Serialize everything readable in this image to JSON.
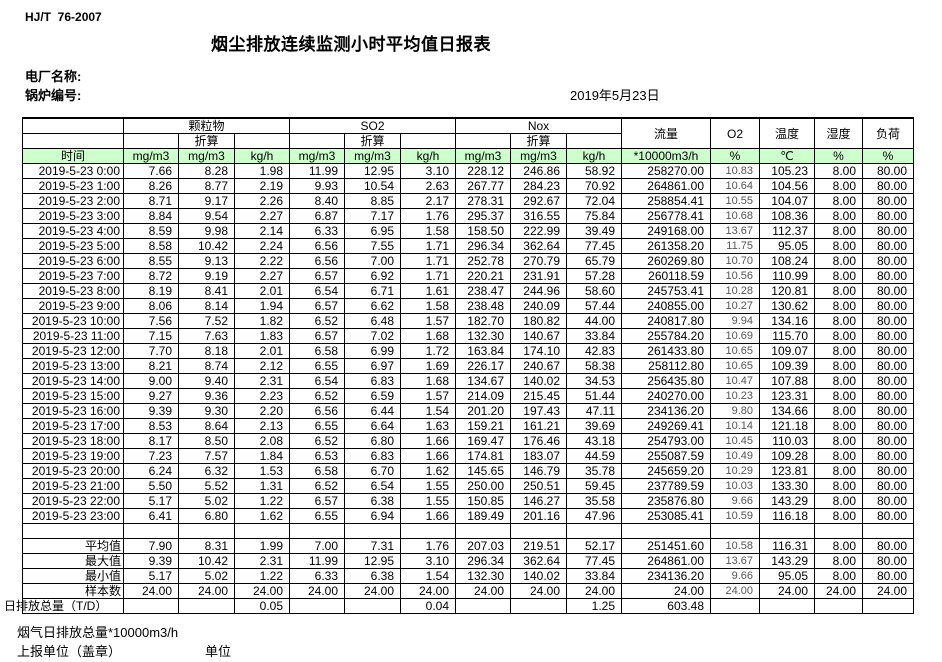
{
  "header": {
    "standard": "HJ/T  76-2007",
    "title": "烟尘排放连续监测小时平均值日报表",
    "plant_label": "电厂名称:",
    "boiler_label": "锅炉编号:",
    "date": "2019年5月23日"
  },
  "table": {
    "time_label": "时间",
    "converted_label": "折算",
    "group_headers": {
      "pm": "颗粒物",
      "so2": "SO2",
      "nox": "Nox",
      "flow": "流量",
      "o2": "O2",
      "temp": "温度",
      "humidity": "湿度",
      "load": "负荷"
    },
    "units": [
      "mg/m3",
      "mg/m3",
      "kg/h",
      "mg/m3",
      "mg/m3",
      "kg/h",
      "mg/m3",
      "mg/m3",
      "kg/h",
      "*10000m3/h",
      "%",
      "℃",
      "%",
      "%"
    ],
    "rows": [
      {
        "time": "2019-5-23 0:00",
        "values": [
          "7.66",
          "8.28",
          "1.98",
          "11.99",
          "12.95",
          "3.10",
          "228.12",
          "246.86",
          "58.92",
          "258270.00",
          "10.83",
          "105.23",
          "8.00",
          "80.00"
        ]
      },
      {
        "time": "2019-5-23 1:00",
        "values": [
          "8.26",
          "8.77",
          "2.19",
          "9.93",
          "10.54",
          "2.63",
          "267.77",
          "284.23",
          "70.92",
          "264861.00",
          "10.64",
          "104.56",
          "8.00",
          "80.00"
        ]
      },
      {
        "time": "2019-5-23 2:00",
        "values": [
          "8.71",
          "9.17",
          "2.26",
          "8.40",
          "8.85",
          "2.17",
          "278.31",
          "292.67",
          "72.04",
          "258854.41",
          "10.55",
          "104.07",
          "8.00",
          "80.00"
        ]
      },
      {
        "time": "2019-5-23 3:00",
        "values": [
          "8.84",
          "9.54",
          "2.27",
          "6.87",
          "7.17",
          "1.76",
          "295.37",
          "316.55",
          "75.84",
          "256778.41",
          "10.68",
          "108.36",
          "8.00",
          "80.00"
        ]
      },
      {
        "time": "2019-5-23 4:00",
        "values": [
          "8.59",
          "9.98",
          "2.14",
          "6.33",
          "6.95",
          "1.58",
          "158.50",
          "222.99",
          "39.49",
          "249168.00",
          "13.67",
          "112.37",
          "8.00",
          "80.00"
        ]
      },
      {
        "time": "2019-5-23 5:00",
        "values": [
          "8.58",
          "10.42",
          "2.24",
          "6.56",
          "7.55",
          "1.71",
          "296.34",
          "362.64",
          "77.45",
          "261358.20",
          "11.75",
          "95.05",
          "8.00",
          "80.00"
        ]
      },
      {
        "time": "2019-5-23 6:00",
        "values": [
          "8.55",
          "9.13",
          "2.22",
          "6.56",
          "7.00",
          "1.71",
          "252.78",
          "270.79",
          "65.79",
          "260269.80",
          "10.70",
          "108.24",
          "8.00",
          "80.00"
        ]
      },
      {
        "time": "2019-5-23 7:00",
        "values": [
          "8.72",
          "9.19",
          "2.27",
          "6.57",
          "6.92",
          "1.71",
          "220.21",
          "231.91",
          "57.28",
          "260118.59",
          "10.56",
          "110.99",
          "8.00",
          "80.00"
        ]
      },
      {
        "time": "2019-5-23 8:00",
        "values": [
          "8.19",
          "8.41",
          "2.01",
          "6.54",
          "6.71",
          "1.61",
          "238.47",
          "244.96",
          "58.60",
          "245753.41",
          "10.28",
          "120.81",
          "8.00",
          "80.00"
        ]
      },
      {
        "time": "2019-5-23 9:00",
        "values": [
          "8.06",
          "8.14",
          "1.94",
          "6.57",
          "6.62",
          "1.58",
          "238.48",
          "240.09",
          "57.44",
          "240855.00",
          "10.27",
          "130.62",
          "8.00",
          "80.00"
        ]
      },
      {
        "time": "2019-5-23 10:00",
        "values": [
          "7.56",
          "7.52",
          "1.82",
          "6.52",
          "6.48",
          "1.57",
          "182.70",
          "180.82",
          "44.00",
          "240817.80",
          "9.94",
          "134.16",
          "8.00",
          "80.00"
        ]
      },
      {
        "time": "2019-5-23 11:00",
        "values": [
          "7.15",
          "7.63",
          "1.83",
          "6.57",
          "7.02",
          "1.68",
          "132.30",
          "140.67",
          "33.84",
          "255784.20",
          "10.69",
          "115.70",
          "8.00",
          "80.00"
        ]
      },
      {
        "time": "2019-5-23 12:00",
        "values": [
          "7.70",
          "8.18",
          "2.01",
          "6.58",
          "6.99",
          "1.72",
          "163.84",
          "174.10",
          "42.83",
          "261433.80",
          "10.65",
          "109.07",
          "8.00",
          "80.00"
        ]
      },
      {
        "time": "2019-5-23 13:00",
        "values": [
          "8.21",
          "8.74",
          "2.12",
          "6.55",
          "6.97",
          "1.69",
          "226.17",
          "240.67",
          "58.38",
          "258112.80",
          "10.65",
          "109.39",
          "8.00",
          "80.00"
        ]
      },
      {
        "time": "2019-5-23 14:00",
        "values": [
          "9.00",
          "9.40",
          "2.31",
          "6.54",
          "6.83",
          "1.68",
          "134.67",
          "140.02",
          "34.53",
          "256435.80",
          "10.47",
          "107.88",
          "8.00",
          "80.00"
        ]
      },
      {
        "time": "2019-5-23 15:00",
        "values": [
          "9.27",
          "9.36",
          "2.23",
          "6.52",
          "6.59",
          "1.57",
          "214.09",
          "215.45",
          "51.44",
          "240270.00",
          "10.23",
          "123.31",
          "8.00",
          "80.00"
        ]
      },
      {
        "time": "2019-5-23 16:00",
        "values": [
          "9.39",
          "9.30",
          "2.20",
          "6.56",
          "6.44",
          "1.54",
          "201.20",
          "197.43",
          "47.11",
          "234136.20",
          "9.80",
          "134.66",
          "8.00",
          "80.00"
        ]
      },
      {
        "time": "2019-5-23 17:00",
        "values": [
          "8.53",
          "8.64",
          "2.13",
          "6.55",
          "6.64",
          "1.63",
          "159.21",
          "161.21",
          "39.69",
          "249269.41",
          "10.14",
          "121.18",
          "8.00",
          "80.00"
        ]
      },
      {
        "time": "2019-5-23 18:00",
        "values": [
          "8.17",
          "8.50",
          "2.08",
          "6.52",
          "6.80",
          "1.66",
          "169.47",
          "176.46",
          "43.18",
          "254793.00",
          "10.45",
          "110.03",
          "8.00",
          "80.00"
        ]
      },
      {
        "time": "2019-5-23 19:00",
        "values": [
          "7.23",
          "7.57",
          "1.84",
          "6.53",
          "6.83",
          "1.66",
          "174.81",
          "183.07",
          "44.59",
          "255087.59",
          "10.49",
          "109.28",
          "8.00",
          "80.00"
        ]
      },
      {
        "time": "2019-5-23 20:00",
        "values": [
          "6.24",
          "6.32",
          "1.53",
          "6.58",
          "6.70",
          "1.62",
          "145.65",
          "146.79",
          "35.78",
          "245659.20",
          "10.29",
          "123.81",
          "8.00",
          "80.00"
        ]
      },
      {
        "time": "2019-5-23 21:00",
        "values": [
          "5.50",
          "5.52",
          "1.31",
          "6.52",
          "6.54",
          "1.55",
          "250.00",
          "250.51",
          "59.45",
          "237789.59",
          "10.03",
          "133.30",
          "8.00",
          "80.00"
        ]
      },
      {
        "time": "2019-5-23 22:00",
        "values": [
          "5.17",
          "5.02",
          "1.22",
          "6.57",
          "6.38",
          "1.55",
          "150.85",
          "146.27",
          "35.58",
          "235876.80",
          "9.66",
          "143.29",
          "8.00",
          "80.00"
        ]
      },
      {
        "time": "2019-5-23 23:00",
        "values": [
          "6.41",
          "6.80",
          "1.62",
          "6.55",
          "6.94",
          "1.66",
          "189.49",
          "201.16",
          "47.96",
          "253085.41",
          "10.59",
          "116.18",
          "8.00",
          "80.00"
        ]
      }
    ],
    "summary": [
      {
        "label": "平均值",
        "values": [
          "7.90",
          "8.31",
          "1.99",
          "7.00",
          "7.31",
          "1.76",
          "207.03",
          "219.51",
          "52.17",
          "251451.60",
          "10.58",
          "116.31",
          "8.00",
          "80.00"
        ]
      },
      {
        "label": "最大值",
        "values": [
          "9.39",
          "10.42",
          "2.31",
          "11.99",
          "12.95",
          "3.10",
          "296.34",
          "362.64",
          "77.45",
          "264861.00",
          "13.67",
          "143.29",
          "8.00",
          "80.00"
        ]
      },
      {
        "label": "最小值",
        "values": [
          "5.17",
          "5.02",
          "1.22",
          "6.33",
          "6.38",
          "1.54",
          "132.30",
          "140.02",
          "33.84",
          "234136.20",
          "9.66",
          "95.05",
          "8.00",
          "80.00"
        ]
      },
      {
        "label": "样本数",
        "values": [
          "24.00",
          "24.00",
          "24.00",
          "24.00",
          "24.00",
          "24.00",
          "24.00",
          "24.00",
          "24.00",
          "24.00",
          "24.00",
          "24.00",
          "24.00",
          "24.00"
        ]
      }
    ],
    "daily_total": {
      "label": "日排放总量（T/D）",
      "values": [
        "",
        "",
        "0.05",
        "",
        "",
        "0.04",
        "",
        "",
        "1.25",
        "603.48",
        "",
        "",
        "",
        ""
      ]
    }
  },
  "footer": {
    "flow_note": "烟气日排放总量*10000m3/h",
    "report_unit_label": "上报单位（盖章）",
    "unit_label": "单位"
  },
  "colors": {
    "header_green": "#ccffcc",
    "border": "#000000"
  }
}
